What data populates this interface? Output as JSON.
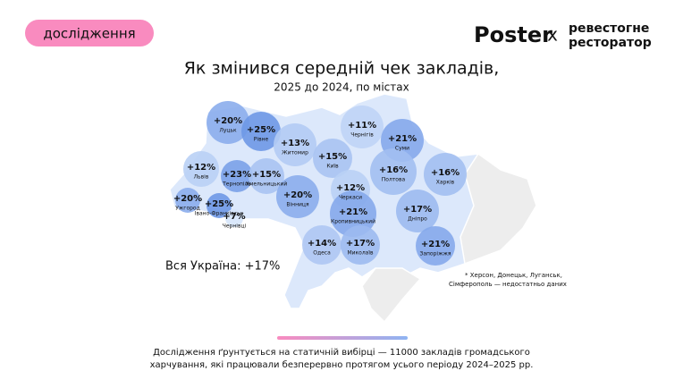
{
  "tag": "дослідження",
  "logo": {
    "poster": "Poster",
    "cross": "x",
    "partner_line1": "ревестогне",
    "partner_line2": "ресторатор"
  },
  "title": "Як змінився середній чек закладів,",
  "subtitle": "2025 до 2024, по містах",
  "total": "Вся Україна: +17%",
  "note": [
    "* Херсон, Донецьк, Луганськ,",
    "Сімферополь — недостатньо даних"
  ],
  "footer": [
    "Дослідження ґрунтується на статичній вибірці — 11000 закладів громадського",
    "харчування, які працювали безперервно протягом усього періоду 2024–2025 рр."
  ],
  "regions": [
    {
      "city": "Луцьк",
      "value": 20,
      "value_label": "+20%"
    },
    {
      "city": "Рівне",
      "value": 25,
      "value_label": "+25%"
    },
    {
      "city": "Житомир",
      "value": 13,
      "value_label": "+13%"
    },
    {
      "city": "Київ",
      "value": 15,
      "value_label": "+15%"
    },
    {
      "city": "Чернігів",
      "value": 11,
      "value_label": "+11%"
    },
    {
      "city": "Суми",
      "value": 21,
      "value_label": "+21%"
    },
    {
      "city": "Львів",
      "value": 12,
      "value_label": "+12%"
    },
    {
      "city": "Тернопіль",
      "value": 23,
      "value_label": "+23%"
    },
    {
      "city": "Хмельницький",
      "value": 15,
      "value_label": "+15%"
    },
    {
      "city": "Полтова",
      "value": 16,
      "value_label": "+16%"
    },
    {
      "city": "Харків",
      "value": 16,
      "value_label": "+16%"
    },
    {
      "city": "Ужгород",
      "value": 20,
      "value_label": "+20%"
    },
    {
      "city": "Івано-Франківськ",
      "value": 25,
      "value_label": "+25%"
    },
    {
      "city": "Чернівці",
      "value": 7,
      "value_label": "+7%"
    },
    {
      "city": "Вінниця",
      "value": 20,
      "value_label": "+20%"
    },
    {
      "city": "Черкаси",
      "value": 12,
      "value_label": "+12%"
    },
    {
      "city": "Кропивницький",
      "value": 21,
      "value_label": "+21%"
    },
    {
      "city": "Дніпро",
      "value": 17,
      "value_label": "+17%"
    },
    {
      "city": "Одеса",
      "value": 14,
      "value_label": "+14%"
    },
    {
      "city": "Миколаїв",
      "value": 17,
      "value_label": "+17%"
    },
    {
      "city": "Запоріжжя",
      "value": 21,
      "value_label": "+21%"
    }
  ]
}
